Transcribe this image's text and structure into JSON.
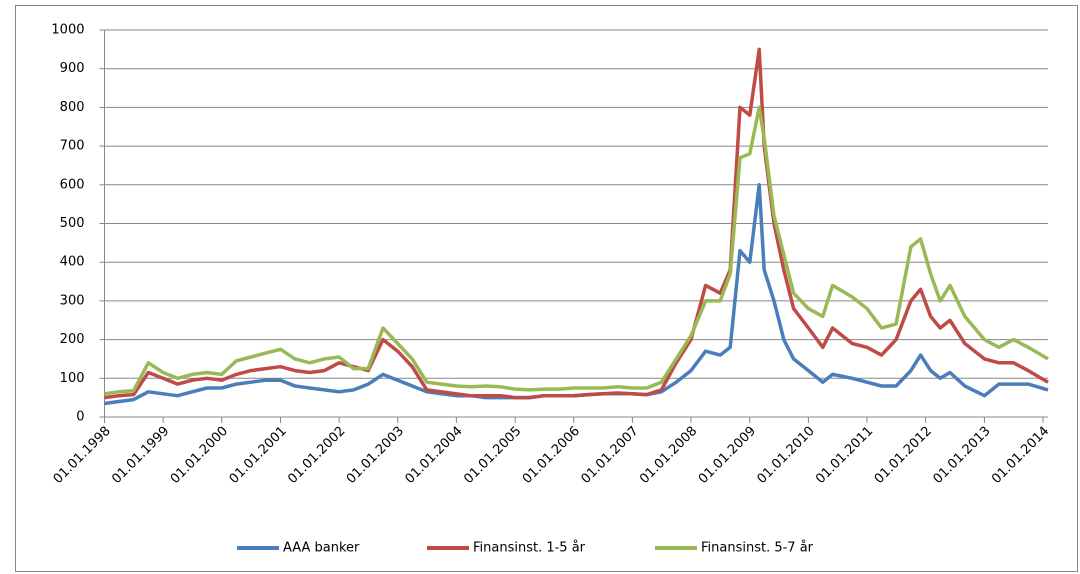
{
  "chart_data": {
    "type": "line",
    "x": [
      "1998-01-01",
      "1998-04-01",
      "1998-07-01",
      "1998-10-01",
      "1999-01-01",
      "1999-04-01",
      "1999-07-01",
      "1999-10-01",
      "2000-01-01",
      "2000-04-01",
      "2000-07-01",
      "2000-10-01",
      "2001-01-01",
      "2001-04-01",
      "2001-07-01",
      "2001-10-01",
      "2002-01-01",
      "2002-04-01",
      "2002-07-01",
      "2002-10-01",
      "2003-01-01",
      "2003-04-01",
      "2003-07-01",
      "2003-10-01",
      "2004-01-01",
      "2004-04-01",
      "2004-07-01",
      "2004-10-01",
      "2005-01-01",
      "2005-04-01",
      "2005-07-01",
      "2005-10-01",
      "2006-01-01",
      "2006-04-01",
      "2006-07-01",
      "2006-10-01",
      "2007-01-01",
      "2007-04-01",
      "2007-07-01",
      "2007-10-01",
      "2008-01-01",
      "2008-04-01",
      "2008-07-01",
      "2008-09-01",
      "2008-11-01",
      "2009-01-01",
      "2009-03-01",
      "2009-04-01",
      "2009-06-01",
      "2009-08-01",
      "2009-10-01",
      "2010-01-01",
      "2010-04-01",
      "2010-06-01",
      "2010-10-01",
      "2011-01-01",
      "2011-04-01",
      "2011-07-01",
      "2011-10-01",
      "2011-12-01",
      "2012-02-01",
      "2012-04-01",
      "2012-06-01",
      "2012-09-01",
      "2013-01-01",
      "2013-04-01",
      "2013-07-01",
      "2013-10-01",
      "2014-02-01"
    ],
    "series": [
      {
        "name": "AAA banker",
        "color": "#4a7ebb",
        "values": [
          35,
          40,
          45,
          65,
          60,
          55,
          65,
          75,
          75,
          85,
          90,
          95,
          95,
          80,
          75,
          70,
          65,
          70,
          85,
          110,
          95,
          80,
          65,
          60,
          55,
          55,
          50,
          50,
          50,
          50,
          55,
          55,
          55,
          58,
          60,
          60,
          60,
          58,
          65,
          90,
          120,
          170,
          160,
          180,
          430,
          400,
          600,
          380,
          300,
          200,
          150,
          120,
          90,
          110,
          100,
          90,
          80,
          80,
          120,
          160,
          120,
          100,
          115,
          80,
          55,
          85,
          85,
          85,
          70
        ]
      },
      {
        "name": "Finansinst. 1-5 år",
        "color": "#be4b48",
        "values": [
          50,
          55,
          58,
          115,
          100,
          85,
          95,
          100,
          95,
          110,
          120,
          125,
          130,
          120,
          115,
          120,
          140,
          130,
          120,
          200,
          170,
          130,
          70,
          65,
          60,
          55,
          55,
          55,
          50,
          50,
          55,
          55,
          55,
          58,
          60,
          62,
          60,
          58,
          70,
          140,
          200,
          340,
          320,
          380,
          800,
          780,
          950,
          700,
          500,
          380,
          280,
          230,
          180,
          230,
          190,
          180,
          160,
          200,
          300,
          330,
          260,
          230,
          250,
          190,
          150,
          140,
          140,
          120,
          90
        ]
      },
      {
        "name": "Finansinst. 5-7 år",
        "color": "#98b954",
        "values": [
          60,
          65,
          68,
          140,
          115,
          100,
          110,
          115,
          110,
          145,
          155,
          165,
          175,
          150,
          140,
          150,
          155,
          125,
          125,
          230,
          190,
          150,
          90,
          85,
          80,
          78,
          80,
          78,
          72,
          70,
          72,
          72,
          75,
          75,
          75,
          78,
          75,
          75,
          90,
          150,
          210,
          300,
          300,
          370,
          670,
          680,
          800,
          720,
          520,
          420,
          320,
          280,
          260,
          340,
          310,
          280,
          230,
          240,
          440,
          460,
          370,
          300,
          340,
          260,
          200,
          180,
          200,
          180,
          150
        ]
      }
    ],
    "xlim": [
      "1998-01-01",
      "2014-02-01"
    ],
    "xticks": [
      {
        "value": "1998-01-01",
        "label": "01.01.1998"
      },
      {
        "value": "1999-01-01",
        "label": "01.01.1999"
      },
      {
        "value": "2000-01-01",
        "label": "01.01.2000"
      },
      {
        "value": "2001-01-01",
        "label": "01.01.2001"
      },
      {
        "value": "2002-01-01",
        "label": "01.01.2002"
      },
      {
        "value": "2003-01-01",
        "label": "01.01.2003"
      },
      {
        "value": "2004-01-01",
        "label": "01.01.2004"
      },
      {
        "value": "2005-01-01",
        "label": "01.01.2005"
      },
      {
        "value": "2006-01-01",
        "label": "01.01.2006"
      },
      {
        "value": "2007-01-01",
        "label": "01.01.2007"
      },
      {
        "value": "2008-01-01",
        "label": "01.01.2008"
      },
      {
        "value": "2009-01-01",
        "label": "01.01.2009"
      },
      {
        "value": "2010-01-01",
        "label": "01.01.2010"
      },
      {
        "value": "2011-01-01",
        "label": "01.01.2011"
      },
      {
        "value": "2012-01-01",
        "label": "01.01.2012"
      },
      {
        "value": "2013-01-01",
        "label": "01.01.2013"
      },
      {
        "value": "2014-01-01",
        "label": "01.01.2014"
      }
    ],
    "ylim": [
      0,
      1000
    ],
    "yticks": [
      0,
      100,
      200,
      300,
      400,
      500,
      600,
      700,
      800,
      900,
      1000
    ],
    "grid": true,
    "legend": "bottom"
  }
}
